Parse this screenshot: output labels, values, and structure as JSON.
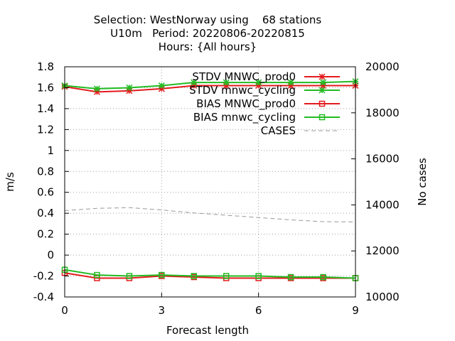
{
  "chart_data": {
    "type": "line",
    "title_lines": [
      "Selection: WestNorway using    68 stations",
      "U10m   Period: 20220806-20220815",
      "Hours: {All hours}"
    ],
    "xlabel": "Forecast length",
    "ylabel": "m/s",
    "y2label": "No cases",
    "xlim": [
      0,
      9
    ],
    "ylim": [
      -0.4,
      1.8
    ],
    "y2lim": [
      10000,
      20000
    ],
    "x_ticks": [
      0,
      3,
      6,
      9
    ],
    "y_ticks": [
      "-0.4",
      "-0.2",
      "0",
      "0.2",
      "0.4",
      "0.6",
      "0.8",
      "1",
      "1.2",
      "1.4",
      "1.6",
      "1.8"
    ],
    "y2_ticks": [
      "10000",
      "12000",
      "14000",
      "16000",
      "18000",
      "20000"
    ],
    "grid": true,
    "legend_position": "top-right",
    "x": [
      0,
      1,
      2,
      3,
      4,
      5,
      6,
      7,
      8,
      9
    ],
    "series": [
      {
        "name": "STDV MNWC_prod0",
        "color": "#e41a1c",
        "marker": "x-star",
        "axis": "y",
        "values": [
          1.61,
          1.56,
          1.57,
          1.59,
          1.62,
          1.62,
          1.62,
          1.62,
          1.62,
          1.62
        ]
      },
      {
        "name": "STDV mnwc_cycling",
        "color": "#22bb22",
        "marker": "x-star",
        "axis": "y",
        "values": [
          1.62,
          1.59,
          1.6,
          1.62,
          1.65,
          1.65,
          1.65,
          1.65,
          1.65,
          1.66
        ]
      },
      {
        "name": "BIAS MNWC_prod0",
        "color": "#e41a1c",
        "marker": "square",
        "axis": "y",
        "values": [
          -0.17,
          -0.22,
          -0.22,
          -0.2,
          -0.21,
          -0.22,
          -0.22,
          -0.22,
          -0.22,
          -0.22
        ]
      },
      {
        "name": "BIAS mnwc_cycling",
        "color": "#22bb22",
        "marker": "square",
        "axis": "y",
        "values": [
          -0.14,
          -0.19,
          -0.2,
          -0.19,
          -0.2,
          -0.2,
          -0.2,
          -0.21,
          -0.21,
          -0.22
        ]
      },
      {
        "name": "CASES",
        "color": "#999999",
        "marker": "none",
        "dash": true,
        "axis": "y2",
        "values": [
          13750,
          13850,
          13880,
          13780,
          13650,
          13550,
          13450,
          13350,
          13270,
          13260
        ]
      }
    ]
  }
}
